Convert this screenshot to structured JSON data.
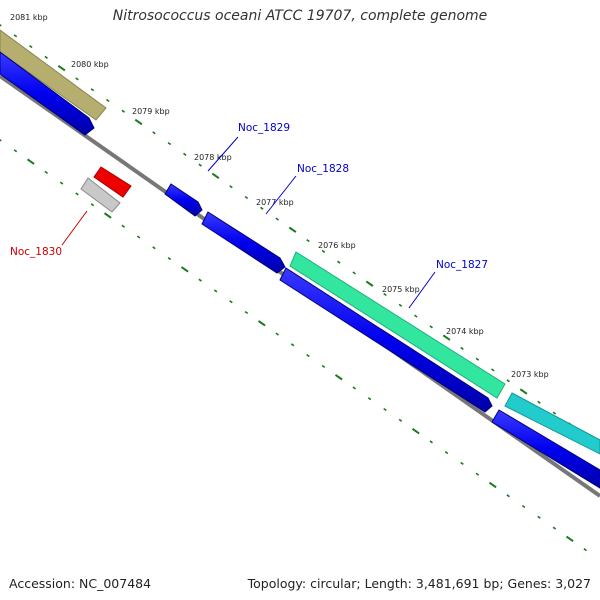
{
  "title": "Nitrosococcus oceani ATCC 19707, complete genome",
  "footer": {
    "accession": "Accession: NC_007484",
    "summary": "Topology: circular; Length: 3,481,691 bp; Genes: 3,027"
  },
  "ticks": [
    {
      "label": "2081 kbp"
    },
    {
      "label": "2080 kbp"
    },
    {
      "label": "2079 kbp"
    },
    {
      "label": "2078 kbp"
    },
    {
      "label": "2077 kbp"
    },
    {
      "label": "2076 kbp"
    },
    {
      "label": "2075 kbp"
    },
    {
      "label": "2074 kbp"
    },
    {
      "label": "2073 kbp"
    }
  ],
  "gene_labels": [
    {
      "text": "Noc_1829",
      "color": "#0000cc"
    },
    {
      "text": "Noc_1828",
      "color": "#0000cc"
    },
    {
      "text": "Noc_1827",
      "color": "#0000cc"
    },
    {
      "text": "Noc_1830",
      "color": "#cc0000"
    }
  ],
  "colors": {
    "backbone": "#777777",
    "tick_marks": "#1a7a1a",
    "cds_forward": "#0000ee",
    "cds_reverse_highlight": "#ee0000",
    "cds_reverse_other": "#bbbbbb",
    "feature_olive": "#b5ae6e",
    "feature_aquamarine": "#33e6a0",
    "feature_cyan": "#22cccc"
  }
}
